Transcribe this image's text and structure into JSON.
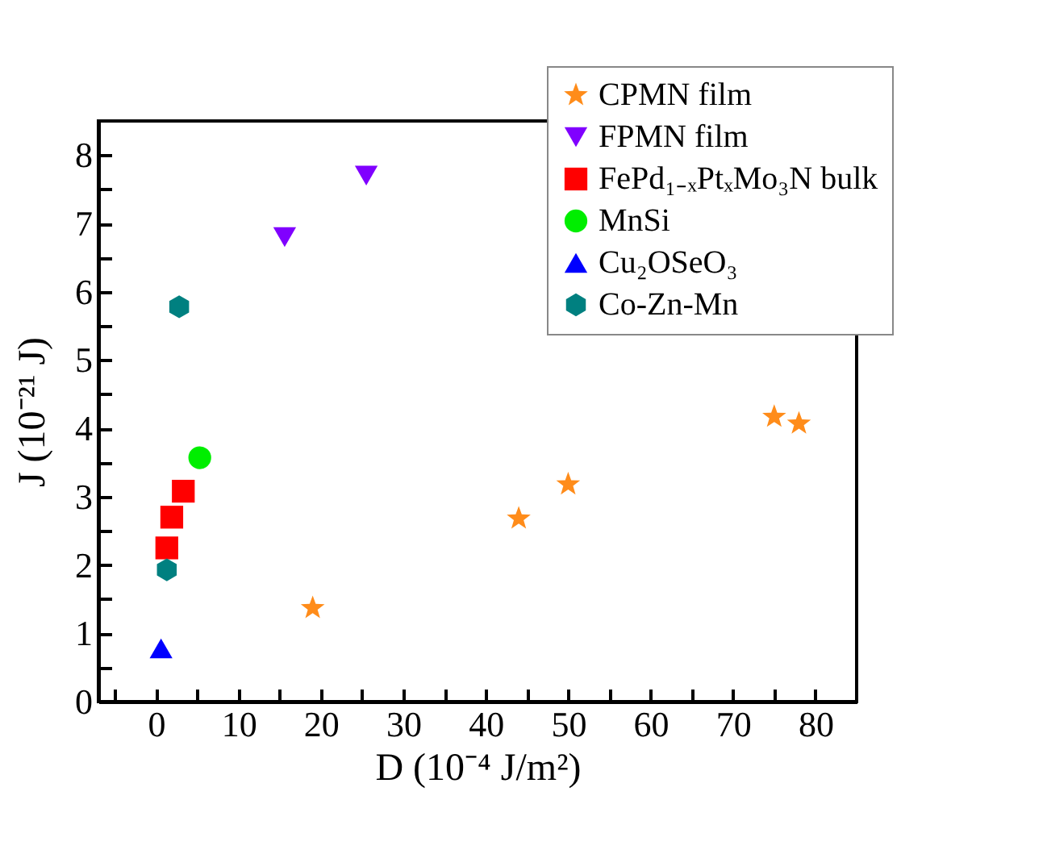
{
  "chart_data": {
    "type": "scatter",
    "xlabel": "D (10⁻⁴ J/m²)",
    "ylabel": "J (10⁻²¹ J)",
    "xlim": [
      -7,
      85
    ],
    "ylim": [
      0,
      8.5
    ],
    "xticks": [
      {
        "value": -5,
        "label": null
      },
      0,
      {
        "value": 5,
        "label": null
      },
      10,
      {
        "value": 15,
        "label": null
      },
      20,
      {
        "value": 25,
        "label": null
      },
      30,
      {
        "value": 35,
        "label": null
      },
      40,
      {
        "value": 45,
        "label": null
      },
      50,
      {
        "value": 55,
        "label": null
      },
      60,
      {
        "value": 65,
        "label": null
      },
      70,
      {
        "value": 75,
        "label": null
      },
      80
    ],
    "yticks": [
      0,
      {
        "value": 0.5,
        "label": null
      },
      1,
      {
        "value": 1.5,
        "label": null
      },
      2,
      {
        "value": 2.5,
        "label": null
      },
      3,
      {
        "value": 3.5,
        "label": null
      },
      4,
      {
        "value": 4.5,
        "label": null
      },
      5,
      {
        "value": 5.5,
        "label": null
      },
      6,
      {
        "value": 6.5,
        "label": null
      },
      7,
      {
        "value": 7.5,
        "label": null
      },
      8
    ],
    "grid": false,
    "legend": "top right",
    "series": [
      {
        "name": "CPMN film",
        "color": "#ff8c1a",
        "marker": "star",
        "x": [
          19,
          44,
          50,
          75,
          78
        ],
        "values": [
          1.37,
          2.68,
          3.18,
          4.17,
          4.07
        ]
      },
      {
        "name": "FPMN film",
        "color": "#8000ff",
        "marker": "triangle-down",
        "x": [
          15.6,
          25.5
        ],
        "values": [
          6.8,
          7.7
        ]
      },
      {
        "name": "FePd₁₋ₓPtₓMo₃N bulk",
        "color": "#ff0000",
        "marker": "square",
        "x": [
          1.3,
          1.9,
          3.3
        ],
        "values": [
          2.25,
          2.7,
          3.08
        ]
      },
      {
        "name": "MnSi",
        "color": "#00ee00",
        "marker": "circle",
        "x": [
          5.3
        ],
        "values": [
          3.57
        ]
      },
      {
        "name": "Cu₂OSeO₃",
        "color": "#0000ff",
        "marker": "triangle",
        "x": [
          0.6
        ],
        "values": [
          0.78
        ]
      },
      {
        "name": "Co-Zn-Mn",
        "color": "#008080",
        "x": [
          2.8,
          1.3
        ],
        "values": [
          5.78,
          1.93
        ]
      }
    ]
  }
}
